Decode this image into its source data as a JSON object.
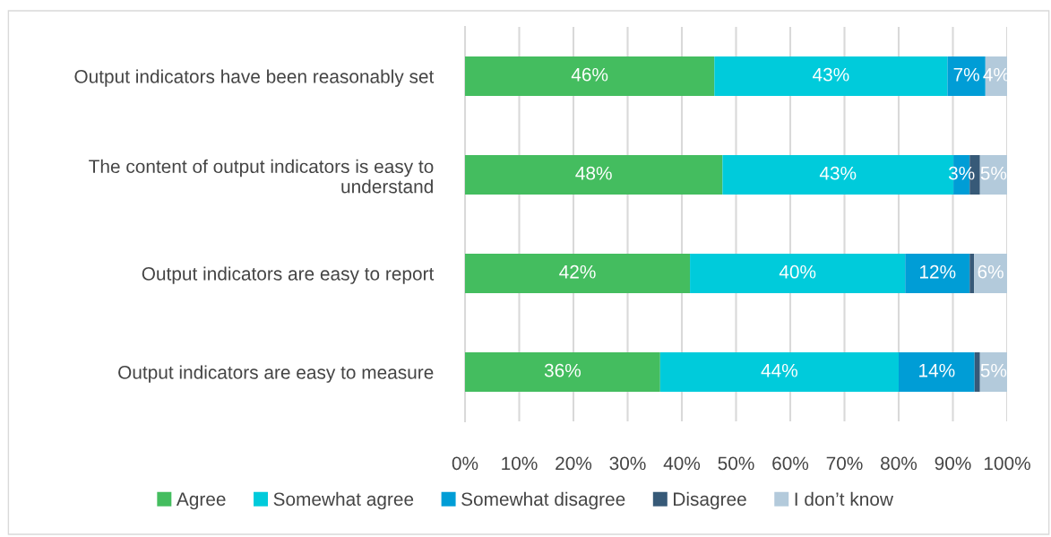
{
  "chart_data": {
    "type": "bar",
    "orientation": "horizontal",
    "stacked": true,
    "categories": [
      "Output indicators have been reasonably set",
      "The content of output indicators is easy to understand",
      "Output indicators are easy to report",
      "Output indicators are easy to measure"
    ],
    "series": [
      {
        "name": "Agree",
        "color": "#44bd5f",
        "values": [
          46,
          47.5,
          41.5,
          36
        ],
        "value_labels": [
          "46%",
          "48%",
          "42%",
          "36%"
        ]
      },
      {
        "name": "Somewhat agree",
        "color": "#00cbdb",
        "values": [
          43,
          42.6,
          39.7,
          44
        ],
        "value_labels": [
          "43%",
          "43%",
          "40%",
          "44%"
        ]
      },
      {
        "name": "Somewhat disagree",
        "color": "#009dd6",
        "values": [
          7,
          3,
          11.9,
          14
        ],
        "value_labels": [
          "7%",
          "3%",
          "12%",
          "14%"
        ]
      },
      {
        "name": "Disagree",
        "color": "#375a78",
        "values": [
          0,
          1.9,
          0.8,
          1
        ],
        "value_labels": [
          null,
          null,
          null,
          null
        ]
      },
      {
        "name": "I don’t know",
        "color": "#b3cadb",
        "values": [
          4,
          5,
          6.1,
          5
        ],
        "value_labels": [
          "4%",
          "5%",
          "6%",
          "5%"
        ]
      }
    ],
    "xlim": [
      0,
      100
    ],
    "xticks": [
      {
        "value": 0,
        "label": "0%"
      },
      {
        "value": 10,
        "label": "10%"
      },
      {
        "value": 20,
        "label": "20%"
      },
      {
        "value": 30,
        "label": "30%"
      },
      {
        "value": 40,
        "label": "40%"
      },
      {
        "value": 50,
        "label": "50%"
      },
      {
        "value": 60,
        "label": "60%"
      },
      {
        "value": 70,
        "label": "70%"
      },
      {
        "value": 80,
        "label": "80%"
      },
      {
        "value": 90,
        "label": "90%"
      },
      {
        "value": 100,
        "label": "100%"
      }
    ],
    "grid": "x",
    "legend": "bottom"
  }
}
